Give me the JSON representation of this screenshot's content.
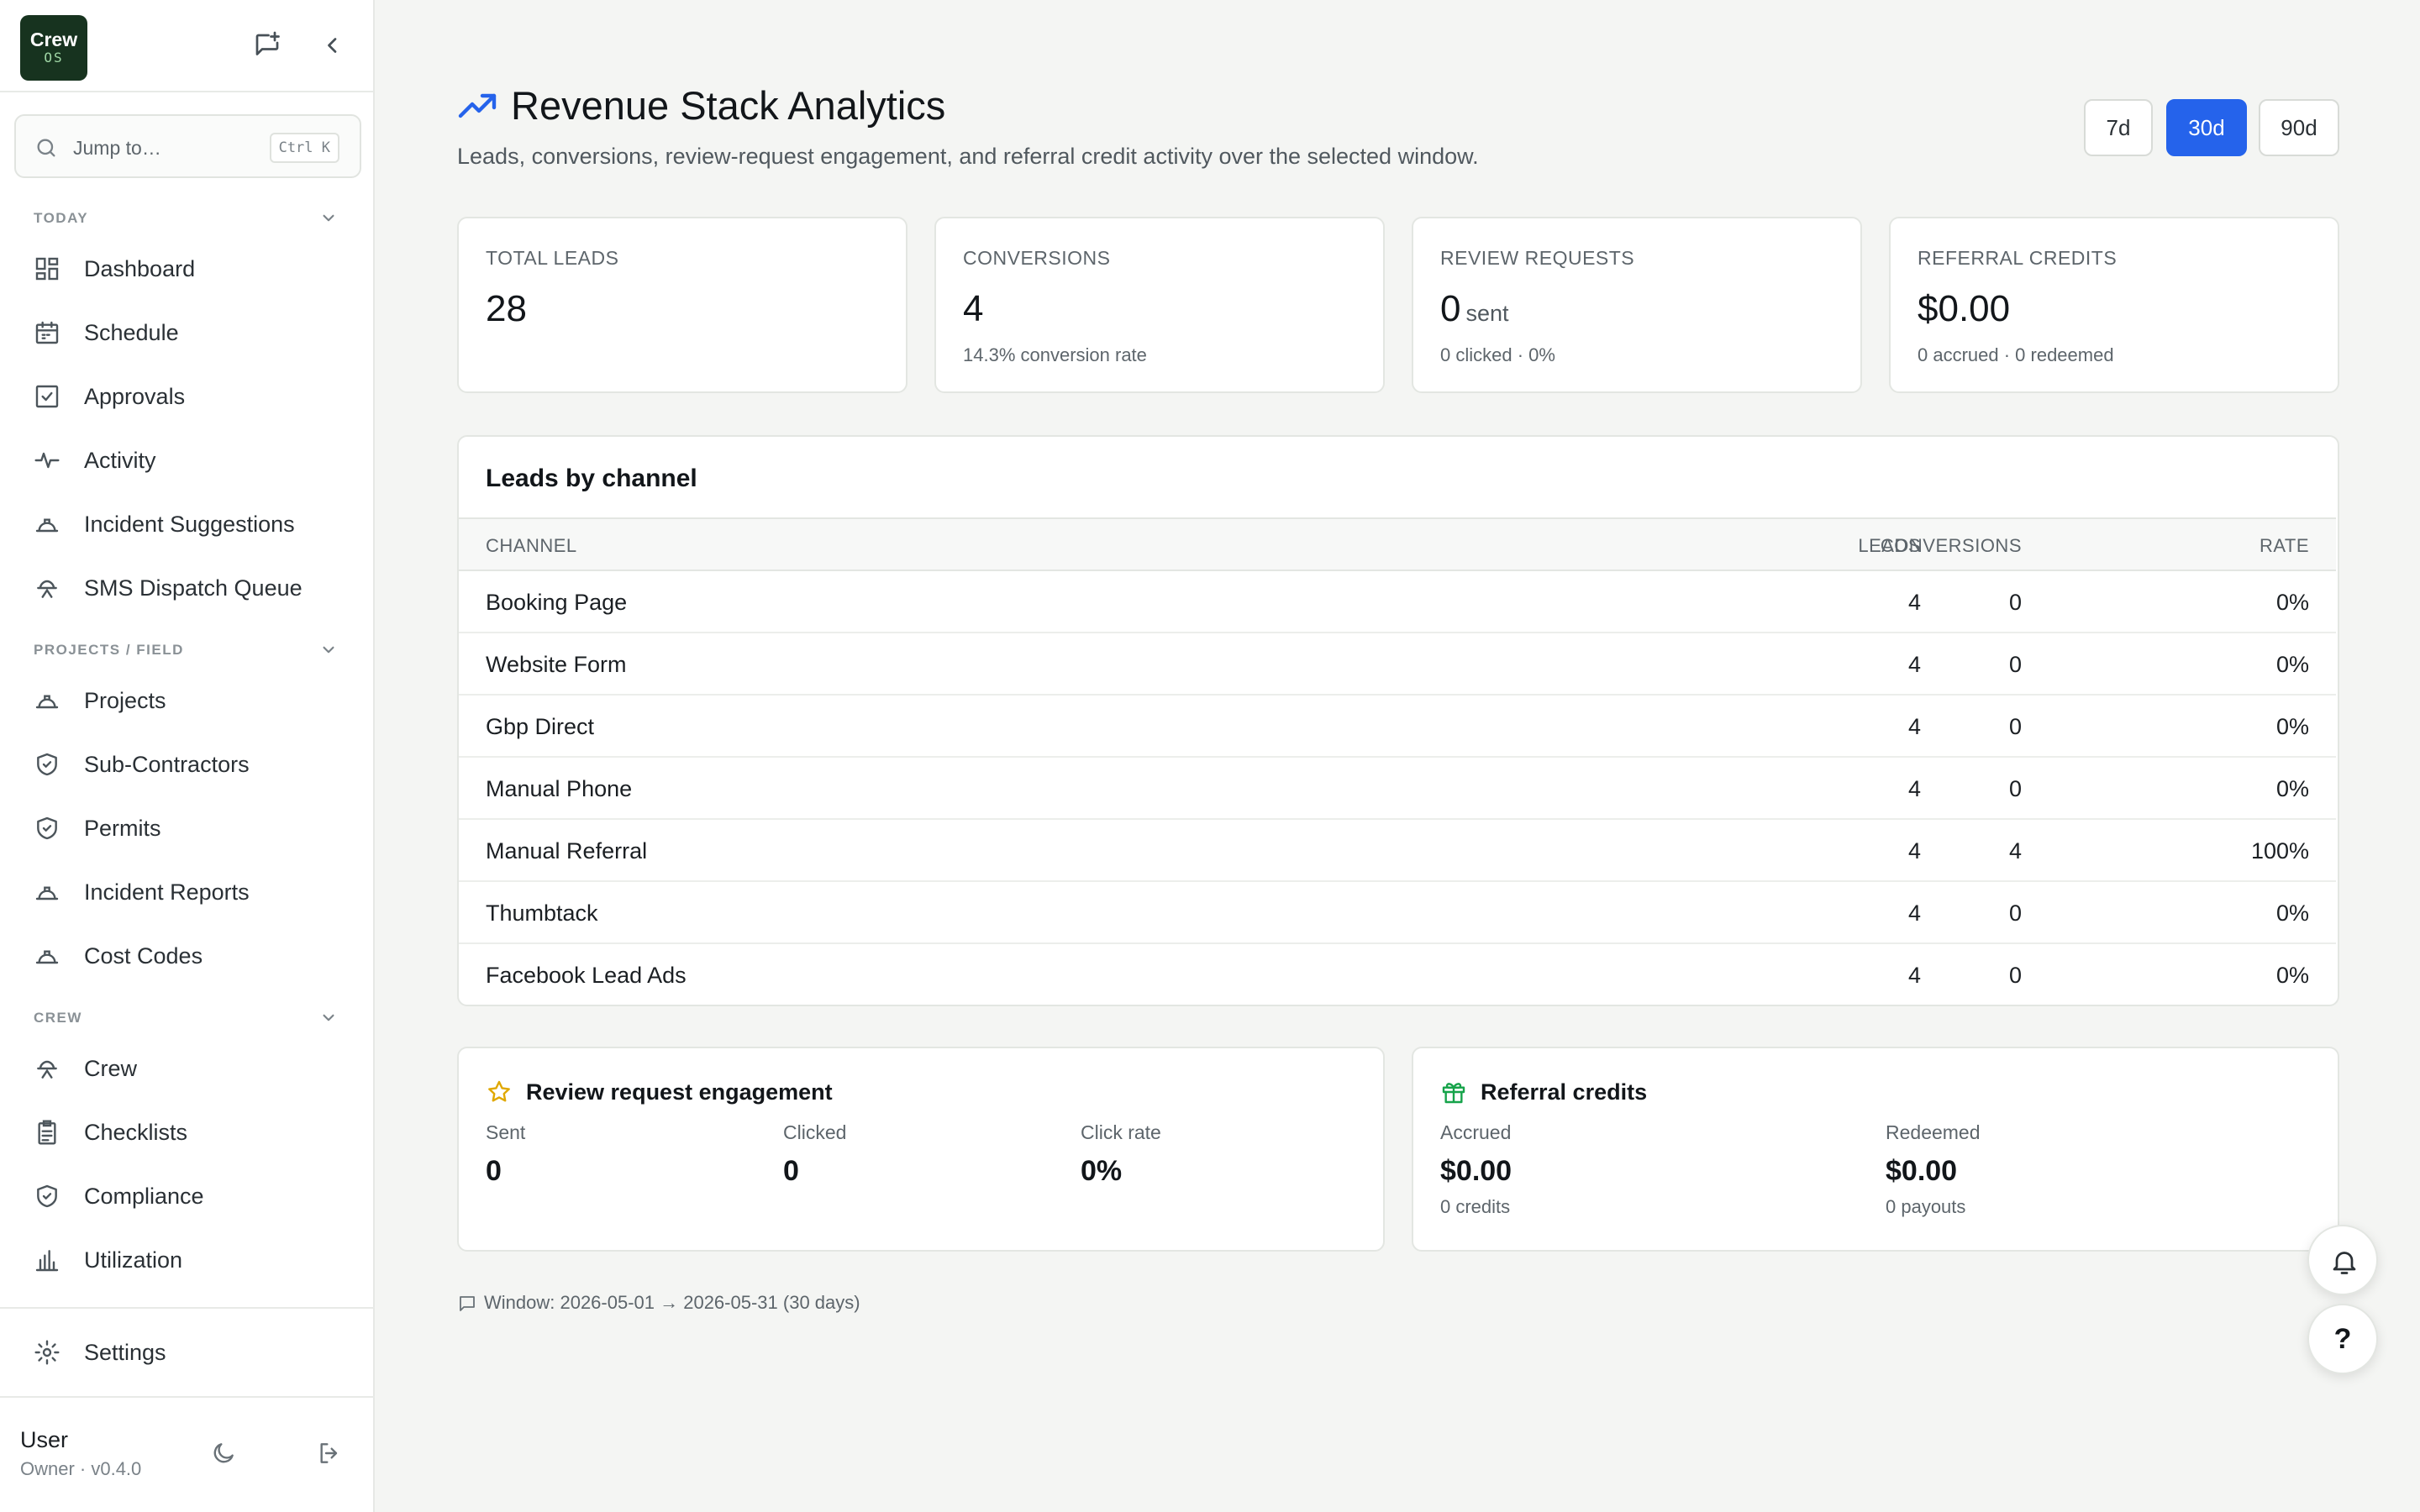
{
  "app": {
    "logo_line1": "Crew",
    "logo_line2": "OS",
    "search_placeholder": "Jump to…",
    "search_shortcut": "Ctrl K"
  },
  "sidebar": {
    "sections": [
      {
        "header": "TODAY",
        "items": [
          {
            "label": "Dashboard",
            "icon": "dashboard-icon"
          },
          {
            "label": "Schedule",
            "icon": "calendar-icon"
          },
          {
            "label": "Approvals",
            "icon": "checkbox-icon"
          },
          {
            "label": "Activity",
            "icon": "pulse-icon"
          },
          {
            "label": "Incident Suggestions",
            "icon": "hardhat-icon"
          },
          {
            "label": "SMS Dispatch Queue",
            "icon": "worker-icon"
          }
        ]
      },
      {
        "header": "PROJECTS / FIELD",
        "items": [
          {
            "label": "Projects",
            "icon": "hardhat-icon"
          },
          {
            "label": "Sub-Contractors",
            "icon": "shield-icon"
          },
          {
            "label": "Permits",
            "icon": "shield-icon"
          },
          {
            "label": "Incident Reports",
            "icon": "hardhat-icon"
          },
          {
            "label": "Cost Codes",
            "icon": "hardhat-icon"
          }
        ]
      },
      {
        "header": "CREW",
        "items": [
          {
            "label": "Crew",
            "icon": "worker-icon"
          },
          {
            "label": "Checklists",
            "icon": "clipboard-icon"
          },
          {
            "label": "Compliance",
            "icon": "shield-icon"
          },
          {
            "label": "Utilization",
            "icon": "bar-chart-icon"
          }
        ]
      }
    ],
    "settings_label": "Settings",
    "user": {
      "name": "User",
      "role": "Owner · v0.4.0"
    }
  },
  "header": {
    "title": "Revenue Stack Analytics",
    "subtitle": "Leads, conversions, review-request engagement, and referral credit activity over the selected window.",
    "ranges": [
      "7d",
      "30d",
      "90d"
    ],
    "active_range": "30d"
  },
  "stats": [
    {
      "label": "TOTAL LEADS",
      "value": "28",
      "unit": "",
      "note": ""
    },
    {
      "label": "CONVERSIONS",
      "value": "4",
      "unit": "",
      "note": "14.3% conversion rate"
    },
    {
      "label": "REVIEW REQUESTS",
      "value": "0",
      "unit": "sent",
      "note": "0 clicked · 0%"
    },
    {
      "label": "REFERRAL CREDITS",
      "value": "$0.00",
      "unit": "",
      "note": "0 accrued · 0 redeemed"
    }
  ],
  "channels": {
    "title": "Leads by channel",
    "columns": [
      "CHANNEL",
      "LEADS",
      "CONVERSIONS",
      "RATE"
    ],
    "rows": [
      {
        "channel": "Booking Page",
        "leads": "4",
        "conversions": "0",
        "rate": "0%"
      },
      {
        "channel": "Website Form",
        "leads": "4",
        "conversions": "0",
        "rate": "0%"
      },
      {
        "channel": "Gbp Direct",
        "leads": "4",
        "conversions": "0",
        "rate": "0%"
      },
      {
        "channel": "Manual Phone",
        "leads": "4",
        "conversions": "0",
        "rate": "0%"
      },
      {
        "channel": "Manual Referral",
        "leads": "4",
        "conversions": "4",
        "rate": "100%"
      },
      {
        "channel": "Thumbtack",
        "leads": "4",
        "conversions": "0",
        "rate": "0%"
      },
      {
        "channel": "Facebook Lead Ads",
        "leads": "4",
        "conversions": "0",
        "rate": "0%"
      }
    ]
  },
  "review_engagement": {
    "title": "Review request engagement",
    "metrics": [
      {
        "label": "Sent",
        "value": "0"
      },
      {
        "label": "Clicked",
        "value": "0"
      },
      {
        "label": "Click rate",
        "value": "0%"
      }
    ]
  },
  "referral_credits": {
    "title": "Referral credits",
    "metrics": [
      {
        "label": "Accrued",
        "value": "$0.00",
        "note": "0 credits"
      },
      {
        "label": "Redeemed",
        "value": "$0.00",
        "note": "0 payouts"
      }
    ]
  },
  "window_text": "Window: 2026-05-01 → 2026-05-31 (30 days)",
  "fab": {
    "help_label": "?"
  },
  "colors": {
    "accent": "#2563eb",
    "logo_bg": "#17331f",
    "star": "#e0a800",
    "gift": "#16a34a"
  }
}
